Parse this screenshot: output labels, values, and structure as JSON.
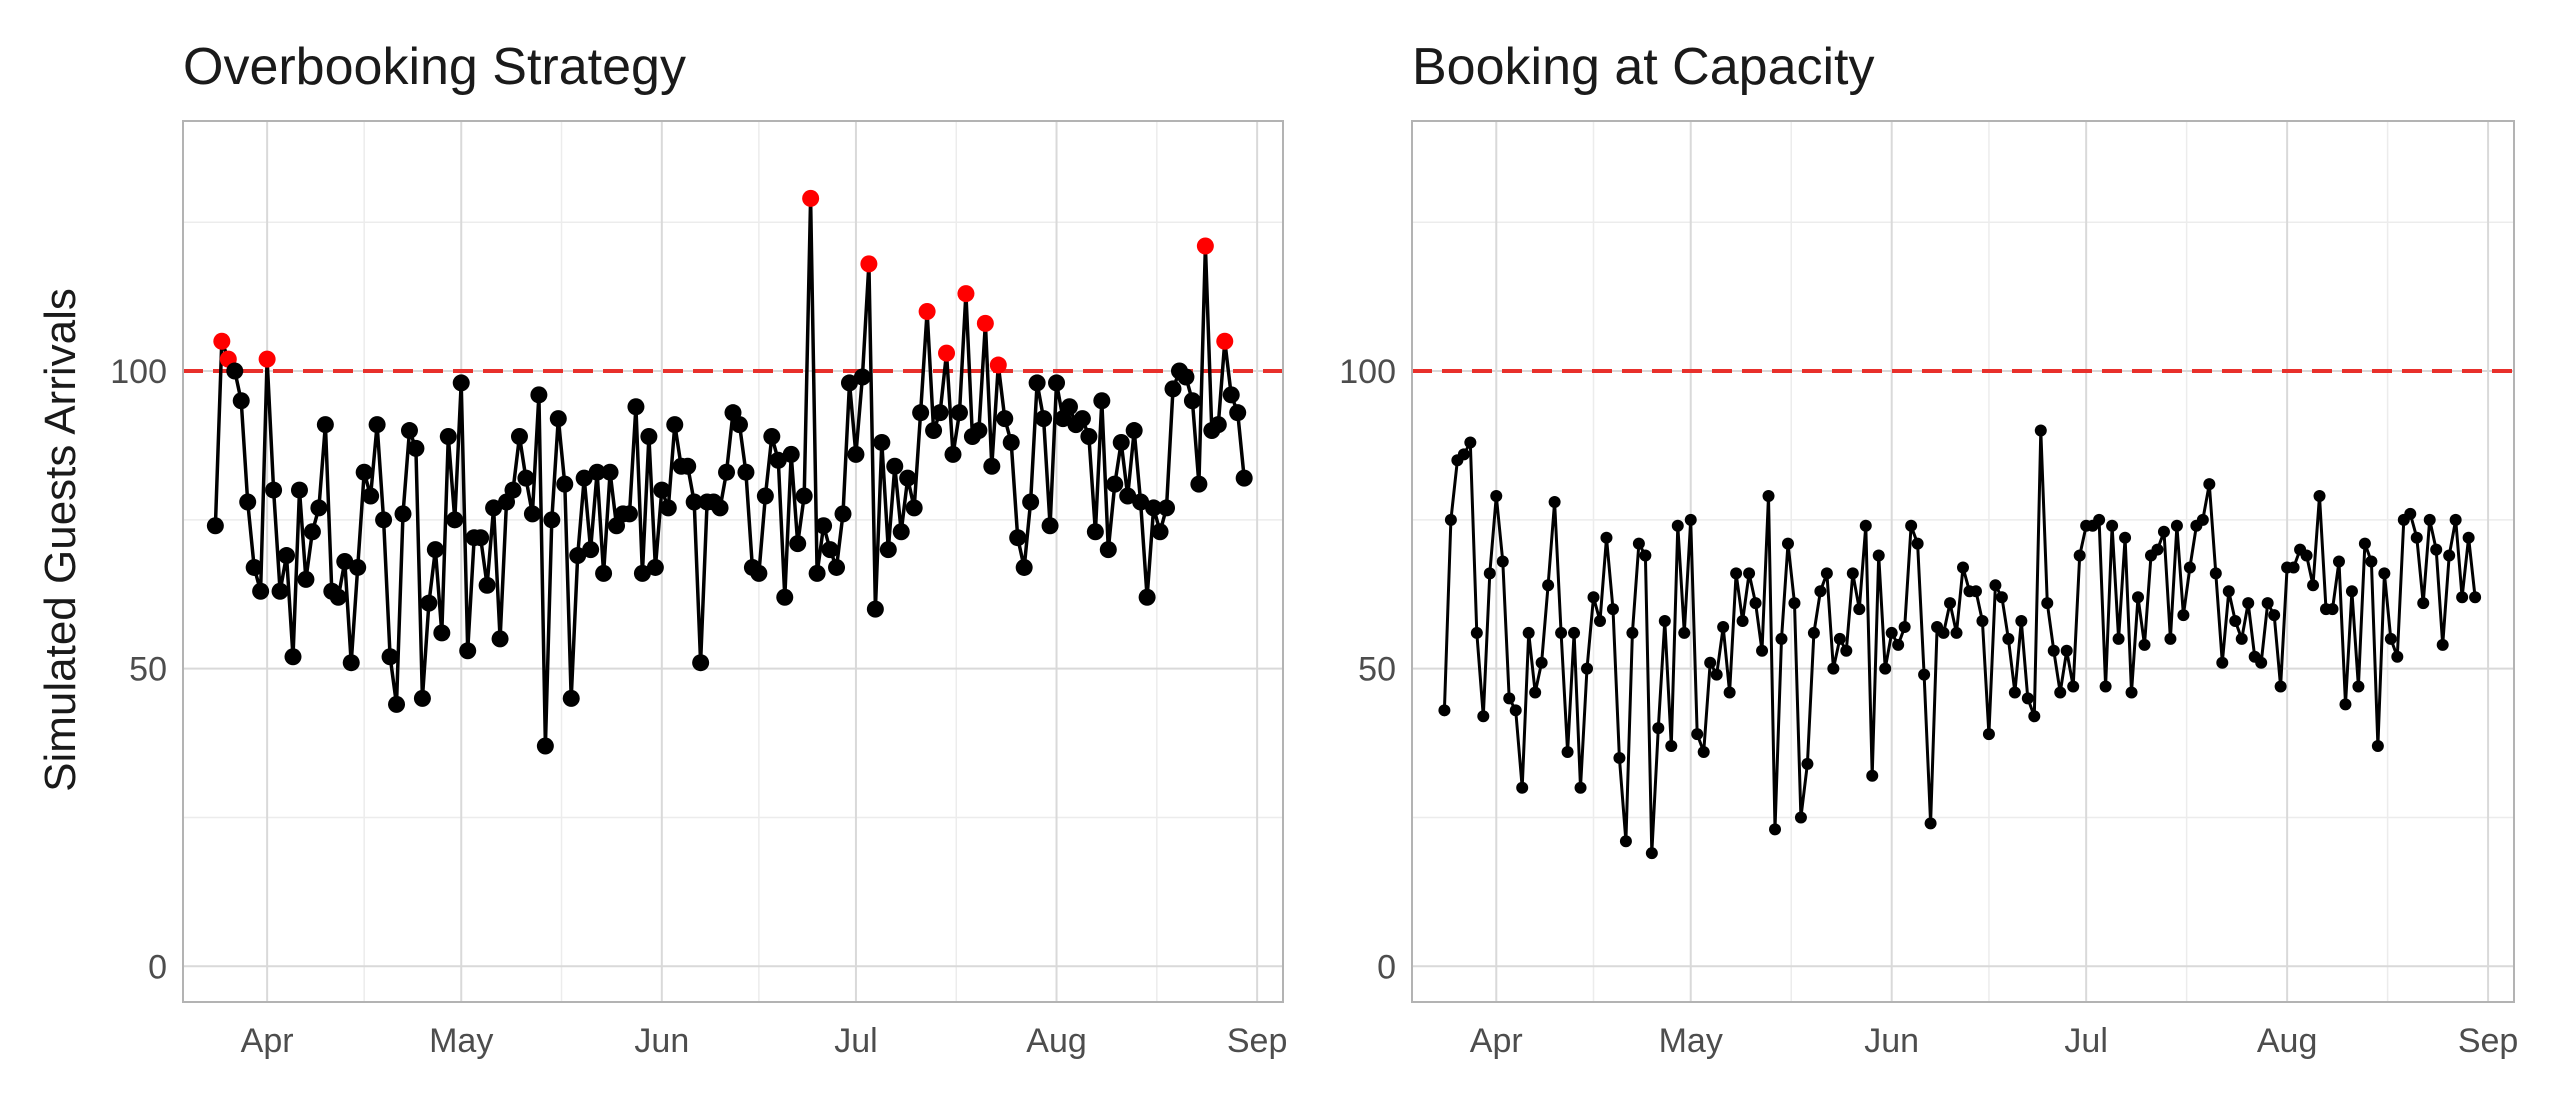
{
  "figure": {
    "ylabel": "Simulated Guests Arrivals"
  },
  "colors": {
    "line": "#000000",
    "points": "#000000",
    "over_capacity_points": "#ff0000",
    "capacity_line": "#e8302b",
    "grid_major": "#d9d9d9",
    "grid_minor": "#ececec",
    "panel_border": "#b3b3b3",
    "tick_text": "#4d4d4d"
  },
  "chart_data": [
    {
      "type": "line",
      "title": "Overbooking Strategy",
      "xlabel": "",
      "ylabel": "Simulated Guests Arrivals",
      "x_start": "2023-03-24",
      "xlim": [
        "2023-03-19",
        "2023-09-05"
      ],
      "ylim": [
        -6,
        142
      ],
      "x_ticks": [
        "2023-04-01",
        "2023-05-01",
        "2023-06-01",
        "2023-07-01",
        "2023-08-01",
        "2023-09-01"
      ],
      "x_tick_labels": [
        "Apr",
        "May",
        "Jun",
        "Jul",
        "Aug",
        "Sep"
      ],
      "y_ticks": [
        0,
        50,
        100
      ],
      "capacity": 100,
      "capacity_line_style": "dashed",
      "highlight_rule": "values above capacity shown in red",
      "point_size": "large",
      "grid": true,
      "series": [
        {
          "values": [
            74,
            105,
            102,
            100,
            95,
            78,
            67,
            63,
            102,
            80,
            63,
            69,
            52,
            80,
            65,
            73,
            77,
            91,
            63,
            62,
            68,
            51,
            67,
            83,
            79,
            91,
            75,
            52,
            44,
            76,
            90,
            87,
            45,
            61,
            70,
            56,
            89,
            75,
            98,
            53,
            72,
            72,
            64,
            77,
            55,
            78,
            80,
            89,
            82,
            76,
            96,
            37,
            75,
            92,
            81,
            45,
            69,
            82,
            70,
            83,
            66,
            83,
            74,
            76,
            76,
            94,
            66,
            89,
            67,
            80,
            77,
            91,
            84,
            84,
            78,
            51,
            78,
            78,
            77,
            83,
            93,
            91,
            83,
            67,
            66,
            79,
            89,
            85,
            62,
            86,
            71,
            79,
            129,
            66,
            74,
            70,
            67,
            76,
            98,
            86,
            99,
            118,
            60,
            88,
            70,
            84,
            73,
            82,
            77,
            93,
            110,
            90,
            93,
            103,
            86,
            93,
            113,
            89,
            90,
            108,
            84,
            101,
            92,
            88,
            72,
            67,
            78,
            98,
            92,
            74,
            98,
            92,
            94,
            91,
            92,
            89,
            73,
            95,
            70,
            81,
            88,
            79,
            90,
            78,
            62,
            77,
            73,
            77,
            97,
            100,
            99,
            95,
            81,
            121,
            90,
            91,
            105,
            96,
            93,
            82
          ]
        }
      ]
    },
    {
      "type": "line",
      "title": "Booking at Capacity",
      "xlabel": "",
      "ylabel": "",
      "x_start": "2023-03-24",
      "xlim": [
        "2023-03-19",
        "2023-09-05"
      ],
      "ylim": [
        -6,
        142
      ],
      "x_ticks": [
        "2023-04-01",
        "2023-05-01",
        "2023-06-01",
        "2023-07-01",
        "2023-08-01",
        "2023-09-01"
      ],
      "x_tick_labels": [
        "Apr",
        "May",
        "Jun",
        "Jul",
        "Aug",
        "Sep"
      ],
      "y_ticks": [
        0,
        50,
        100
      ],
      "capacity": 100,
      "capacity_line_style": "dashed",
      "point_size": "small",
      "grid": true,
      "series": [
        {
          "values": [
            43,
            75,
            85,
            86,
            88,
            56,
            42,
            66,
            79,
            68,
            45,
            43,
            30,
            56,
            46,
            51,
            64,
            78,
            56,
            36,
            56,
            30,
            50,
            62,
            58,
            72,
            60,
            35,
            21,
            56,
            71,
            69,
            19,
            40,
            58,
            37,
            74,
            56,
            75,
            39,
            36,
            51,
            49,
            57,
            46,
            66,
            58,
            66,
            61,
            53,
            79,
            23,
            55,
            71,
            61,
            25,
            34,
            56,
            63,
            66,
            50,
            55,
            53,
            66,
            60,
            74,
            32,
            69,
            50,
            56,
            54,
            57,
            74,
            71,
            49,
            24,
            57,
            56,
            61,
            56,
            67,
            63,
            63,
            58,
            39,
            64,
            62,
            55,
            46,
            58,
            45,
            42,
            90,
            61,
            53,
            46,
            53,
            47,
            69,
            74,
            74,
            75,
            47,
            74,
            55,
            72,
            46,
            62,
            54,
            69,
            70,
            73,
            55,
            74,
            59,
            67,
            74,
            75,
            81,
            66,
            51,
            63,
            58,
            55,
            61,
            52,
            51,
            61,
            59,
            47,
            67,
            67,
            70,
            69,
            64,
            79,
            60,
            60,
            68,
            44,
            63,
            47,
            71,
            68,
            37,
            66,
            55,
            52,
            75,
            76,
            72,
            61,
            75,
            70,
            54,
            69,
            75,
            62,
            72,
            62
          ]
        }
      ]
    }
  ]
}
